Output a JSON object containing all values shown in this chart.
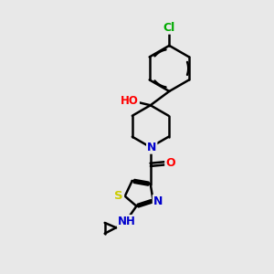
{
  "bg_color": "#e8e8e8",
  "atom_colors": {
    "C": "#000000",
    "N": "#0000cc",
    "O": "#ff0000",
    "S": "#cccc00",
    "Cl": "#00aa00",
    "H": "#000000"
  },
  "bond_color": "#000000",
  "bond_width": 1.8,
  "title": ""
}
